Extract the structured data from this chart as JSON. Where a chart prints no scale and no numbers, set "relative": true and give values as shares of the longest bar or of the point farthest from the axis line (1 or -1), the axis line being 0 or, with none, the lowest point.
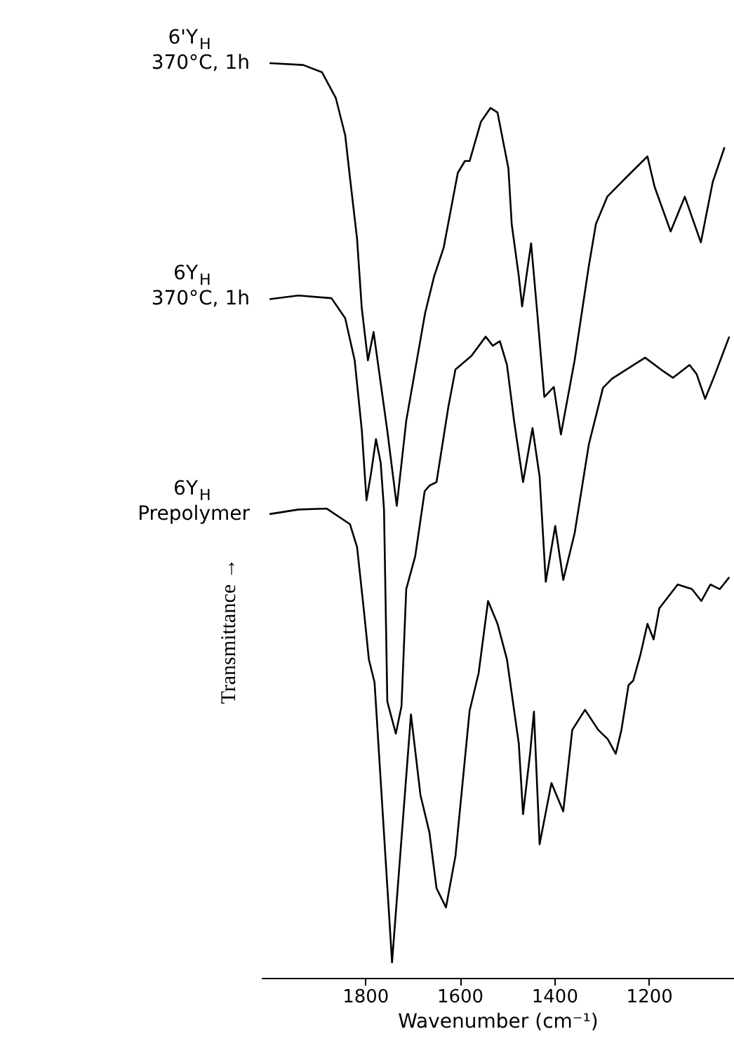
{
  "chart_data": {
    "type": "line",
    "relative": true,
    "xlabel": "Wavenumber (cm⁻¹)",
    "ylabel": "Transmittance →",
    "xlim": [
      2020,
      1020
    ],
    "xticks": [
      1800,
      1600,
      1400,
      1200
    ],
    "tick_labels": "x",
    "grid": false,
    "legend": false,
    "series": [
      {
        "name": "6'Y$_{H}$\n370°C, 1h",
        "color": "#000000",
        "x": [
          2002,
          1931,
          1891,
          1862,
          1842,
          1832,
          1817,
          1807,
          1794,
          1782,
          1753,
          1733,
          1713,
          1673,
          1654,
          1634,
          1604,
          1589,
          1579,
          1555,
          1535,
          1520,
          1497,
          1490,
          1475,
          1468,
          1449,
          1436,
          1421,
          1401,
          1386,
          1357,
          1327,
          1312,
          1288,
          1248,
          1203,
          1188,
          1154,
          1124,
          1090,
          1065,
          1040
        ],
        "values": [
          1.0,
          0.998,
          0.99,
          0.962,
          0.921,
          0.875,
          0.808,
          0.732,
          0.675,
          0.706,
          0.598,
          0.516,
          0.609,
          0.727,
          0.767,
          0.798,
          0.88,
          0.893,
          0.893,
          0.936,
          0.951,
          0.946,
          0.885,
          0.824,
          0.767,
          0.734,
          0.803,
          0.727,
          0.635,
          0.646,
          0.594,
          0.675,
          0.778,
          0.824,
          0.854,
          0.875,
          0.898,
          0.865,
          0.816,
          0.854,
          0.804,
          0.87,
          0.908
        ]
      },
      {
        "name": "6Y$_{H}$\n370°C, 1h",
        "color": "#000000",
        "x": [
          2002,
          1941,
          1871,
          1842,
          1822,
          1807,
          1797,
          1787,
          1777,
          1767,
          1760,
          1753,
          1735,
          1723,
          1713,
          1694,
          1674,
          1664,
          1649,
          1624,
          1609,
          1575,
          1545,
          1530,
          1515,
          1500,
          1485,
          1466,
          1446,
          1431,
          1418,
          1398,
          1381,
          1357,
          1327,
          1297,
          1278,
          1208,
          1169,
          1149,
          1114,
          1099,
          1081,
          1060,
          1030
        ],
        "values": [
          0.742,
          0.746,
          0.743,
          0.721,
          0.675,
          0.599,
          0.522,
          0.553,
          0.589,
          0.563,
          0.512,
          0.302,
          0.267,
          0.297,
          0.425,
          0.461,
          0.532,
          0.538,
          0.542,
          0.624,
          0.665,
          0.68,
          0.701,
          0.691,
          0.696,
          0.67,
          0.609,
          0.542,
          0.601,
          0.548,
          0.433,
          0.494,
          0.435,
          0.486,
          0.583,
          0.645,
          0.655,
          0.678,
          0.663,
          0.656,
          0.67,
          0.66,
          0.633,
          0.66,
          0.701
        ]
      },
      {
        "name": "6Y$_{H}$\nPrepolymer",
        "color": "#000000",
        "x": [
          2002,
          1941,
          1881,
          1832,
          1817,
          1802,
          1792,
          1780,
          1743,
          1703,
          1683,
          1664,
          1649,
          1629,
          1609,
          1579,
          1560,
          1540,
          1520,
          1500,
          1475,
          1466,
          1451,
          1443,
          1431,
          1406,
          1381,
          1362,
          1335,
          1307,
          1287,
          1270,
          1258,
          1243,
          1233,
          1218,
          1203,
          1190,
          1178,
          1139,
          1109,
          1089,
          1070,
          1050,
          1030
        ],
        "values": [
          0.507,
          0.512,
          0.513,
          0.496,
          0.471,
          0.399,
          0.348,
          0.323,
          0.017,
          0.288,
          0.2,
          0.159,
          0.098,
          0.077,
          0.133,
          0.292,
          0.333,
          0.412,
          0.387,
          0.348,
          0.256,
          0.179,
          0.246,
          0.291,
          0.146,
          0.213,
          0.182,
          0.271,
          0.293,
          0.271,
          0.261,
          0.245,
          0.271,
          0.32,
          0.325,
          0.353,
          0.387,
          0.37,
          0.404,
          0.43,
          0.425,
          0.412,
          0.43,
          0.425,
          0.438
        ]
      }
    ]
  }
}
